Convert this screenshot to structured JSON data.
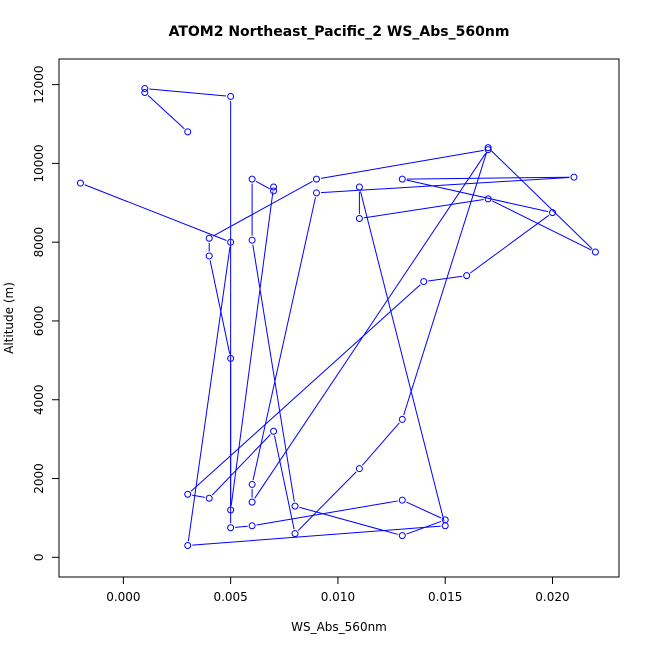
{
  "chart_data": {
    "type": "line",
    "title": "ATOM2 Northeast_Pacific_2 WS_Abs_560nm",
    "xlabel": "WS_Abs_560nm",
    "ylabel": "Altitude (m)",
    "xlim": [
      -0.003,
      0.0231
    ],
    "ylim": [
      -500,
      12650
    ],
    "xticks": [
      0.0,
      0.005,
      0.01,
      0.015,
      0.02
    ],
    "xtick_labels": [
      "0.000",
      "0.005",
      "0.010",
      "0.015",
      "0.020"
    ],
    "yticks": [
      0,
      2000,
      4000,
      6000,
      8000,
      10000,
      12000
    ],
    "ytick_labels": [
      "0",
      "2000",
      "4000",
      "6000",
      "8000",
      "10000",
      "12000"
    ],
    "grid": false,
    "legend": "none",
    "colors": {
      "series": "#0000ff",
      "frame": "#000000",
      "background": "#ffffff"
    },
    "marker": "open-circle",
    "series": [
      {
        "x": [
          0.003,
          0.001,
          0.001,
          0.005,
          0.005,
          0.006,
          0.013,
          0.015,
          0.013,
          0.008,
          0.006,
          0.006,
          0.007,
          0.007,
          0.005,
          0.005,
          0.004,
          0.004,
          0.009,
          0.017,
          0.006,
          0.006,
          0.009,
          0.021,
          0.013,
          0.02,
          0.016,
          0.014,
          0.003,
          0.004,
          0.007,
          0.008,
          0.011,
          0.013,
          0.017,
          0.022,
          0.017,
          0.011,
          0.011,
          0.015,
          0.003,
          0.005,
          -0.002
        ],
        "y": [
          10800,
          11800,
          11900,
          11700,
          750,
          800,
          1450,
          950,
          550,
          1300,
          8050,
          9600,
          9300,
          9400,
          1200,
          5050,
          7650,
          8100,
          9600,
          10350,
          1400,
          1850,
          9250,
          9650,
          9600,
          8750,
          7150,
          7000,
          1600,
          1500,
          3200,
          600,
          2250,
          3500,
          10400,
          7750,
          9100,
          8600,
          9400,
          800,
          300,
          8000,
          9500
        ]
      }
    ]
  }
}
